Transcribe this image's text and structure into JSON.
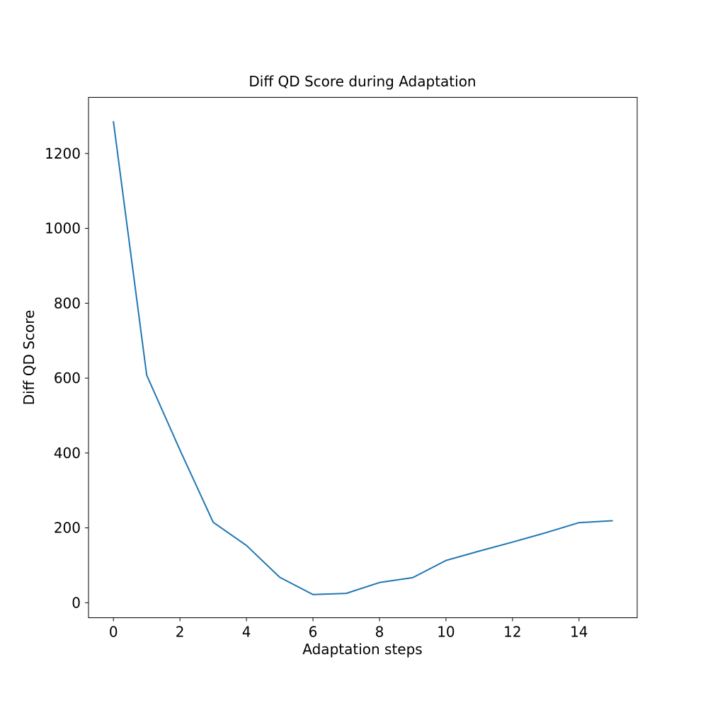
{
  "chart_data": {
    "type": "line",
    "title": "Diff QD Score during Adaptation",
    "xlabel": "Adaptation steps",
    "ylabel": "Diff QD Score",
    "xlim": [
      -0.75,
      15.75
    ],
    "ylim": [
      -40,
      1350
    ],
    "xticks": [
      0,
      2,
      4,
      6,
      8,
      10,
      12,
      14
    ],
    "yticks": [
      0,
      200,
      400,
      600,
      800,
      1000,
      1200
    ],
    "grid": false,
    "series": [
      {
        "color": "#1f77b4",
        "x": [
          0,
          1,
          2,
          3,
          4,
          5,
          6,
          7,
          8,
          9,
          10,
          11,
          12,
          13,
          14,
          15
        ],
        "y": [
          1285,
          608,
          408,
          215,
          153,
          68,
          22,
          25,
          54,
          67,
          113,
          138,
          162,
          187,
          214,
          219
        ]
      }
    ]
  }
}
